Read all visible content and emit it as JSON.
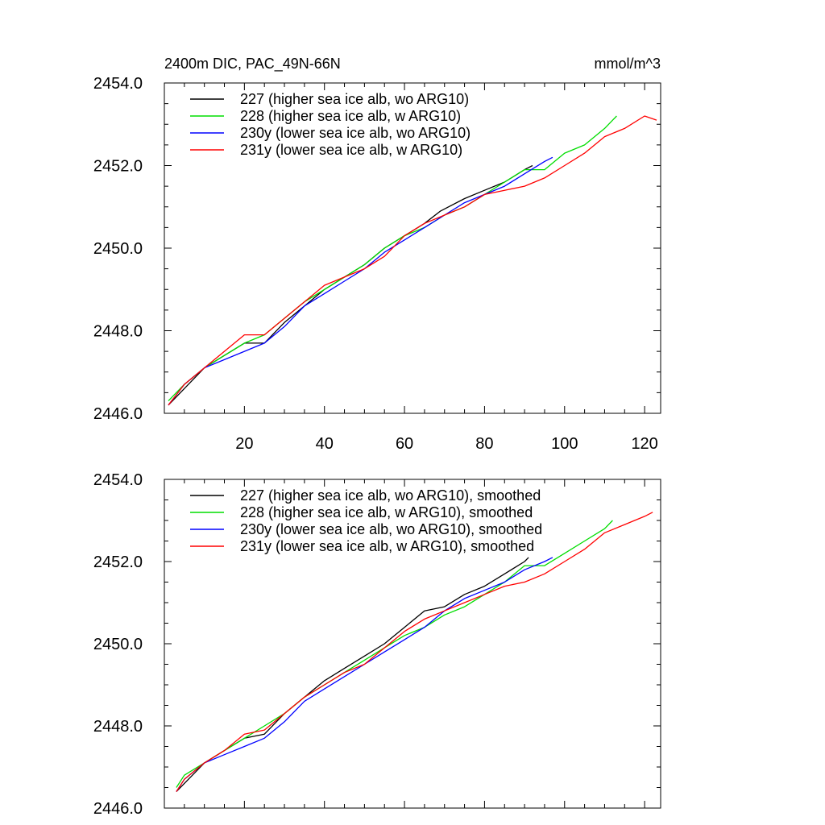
{
  "title_left": "2400m DIC, PAC_49N-66N",
  "title_right": "mmol/m^3",
  "chart_data": [
    {
      "type": "line",
      "xlim": [
        0,
        124
      ],
      "ylim": [
        2446.0,
        2454.0
      ],
      "x_ticks": [
        20,
        40,
        60,
        80,
        100,
        120
      ],
      "x_tick_labels": [
        "20",
        "40",
        "60",
        "80",
        "100",
        "120"
      ],
      "show_x_tick_labels": true,
      "y_ticks": [
        2446.0,
        2448.0,
        2450.0,
        2452.0,
        2454.0
      ],
      "y_tick_labels": [
        "2446.0",
        "2448.0",
        "2450.0",
        "2452.0",
        "2454.0"
      ],
      "grid": false,
      "legend_position": "top-left",
      "series": [
        {
          "name": "227 (higher sea ice alb, wo ARG10)",
          "color": "#000000",
          "x": [
            1,
            5,
            10,
            15,
            20,
            25,
            30,
            35,
            40,
            45,
            50,
            55,
            60,
            65,
            69,
            75,
            80,
            85,
            90,
            92
          ],
          "y": [
            2446.2,
            2446.6,
            2447.1,
            2447.4,
            2447.7,
            2447.7,
            2448.2,
            2448.6,
            2449.0,
            2449.3,
            2449.6,
            2450.0,
            2450.3,
            2450.6,
            2450.9,
            2451.2,
            2451.4,
            2451.6,
            2451.9,
            2452.0
          ]
        },
        {
          "name": "228 (higher sea ice alb, w ARG10)",
          "color": "#00dd00",
          "x": [
            1,
            5,
            10,
            15,
            20,
            25,
            30,
            35,
            40,
            45,
            50,
            55,
            60,
            65,
            70,
            75,
            80,
            85,
            90,
            95,
            100,
            105,
            110,
            113
          ],
          "y": [
            2446.3,
            2446.7,
            2447.1,
            2447.4,
            2447.7,
            2447.9,
            2448.3,
            2448.7,
            2449.0,
            2449.3,
            2449.6,
            2450.0,
            2450.3,
            2450.5,
            2450.8,
            2451.0,
            2451.3,
            2451.6,
            2451.9,
            2451.9,
            2452.3,
            2452.5,
            2452.9,
            2453.2
          ]
        },
        {
          "name": "230y (lower sea ice alb, wo ARG10)",
          "color": "#0000ff",
          "x": [
            1,
            5,
            10,
            15,
            20,
            25,
            30,
            35,
            40,
            45,
            50,
            55,
            60,
            65,
            70,
            75,
            80,
            85,
            90,
            95,
            97
          ],
          "y": [
            2446.2,
            2446.7,
            2447.1,
            2447.3,
            2447.5,
            2447.7,
            2448.1,
            2448.6,
            2448.9,
            2449.2,
            2449.5,
            2449.9,
            2450.2,
            2450.5,
            2450.8,
            2451.1,
            2451.3,
            2451.5,
            2451.8,
            2452.1,
            2452.2
          ]
        },
        {
          "name": "231y (lower sea ice alb, w ARG10)",
          "color": "#ff0000",
          "x": [
            1,
            5,
            10,
            15,
            20,
            25,
            30,
            35,
            40,
            45,
            50,
            55,
            60,
            65,
            70,
            75,
            80,
            85,
            90,
            95,
            100,
            105,
            110,
            115,
            120,
            123
          ],
          "y": [
            2446.2,
            2446.7,
            2447.1,
            2447.5,
            2447.9,
            2447.9,
            2448.3,
            2448.7,
            2449.1,
            2449.3,
            2449.5,
            2449.8,
            2450.3,
            2450.6,
            2450.8,
            2451.0,
            2451.3,
            2451.4,
            2451.5,
            2451.7,
            2452.0,
            2452.3,
            2452.7,
            2452.9,
            2453.2,
            2453.1
          ]
        }
      ]
    },
    {
      "type": "line",
      "xlim": [
        0,
        124
      ],
      "ylim": [
        2446.0,
        2454.0
      ],
      "x_ticks": [
        20,
        40,
        60,
        80,
        100,
        120
      ],
      "x_tick_labels": [],
      "show_x_tick_labels": false,
      "y_ticks": [
        2446.0,
        2448.0,
        2450.0,
        2452.0,
        2454.0
      ],
      "y_tick_labels": [
        "2446.0",
        "2448.0",
        "2450.0",
        "2452.0",
        "2454.0"
      ],
      "grid": false,
      "legend_position": "top-left",
      "series": [
        {
          "name": "227 (higher sea ice alb, wo ARG10), smoothed",
          "color": "#000000",
          "x": [
            3,
            5,
            10,
            15,
            20,
            25,
            30,
            35,
            40,
            45,
            50,
            55,
            60,
            65,
            70,
            75,
            80,
            85,
            90,
            91
          ],
          "y": [
            2446.4,
            2446.6,
            2447.1,
            2447.4,
            2447.7,
            2447.8,
            2448.3,
            2448.7,
            2449.1,
            2449.4,
            2449.7,
            2450.0,
            2450.4,
            2450.8,
            2450.9,
            2451.2,
            2451.4,
            2451.7,
            2452.0,
            2452.1
          ]
        },
        {
          "name": "228 (higher sea ice alb, w ARG10), smoothed",
          "color": "#00dd00",
          "x": [
            3,
            5,
            10,
            15,
            20,
            25,
            30,
            35,
            40,
            45,
            50,
            55,
            60,
            65,
            70,
            75,
            80,
            85,
            90,
            95,
            100,
            105,
            110,
            112
          ],
          "y": [
            2446.5,
            2446.8,
            2447.1,
            2447.4,
            2447.7,
            2448.0,
            2448.3,
            2448.7,
            2449.0,
            2449.3,
            2449.6,
            2449.9,
            2450.2,
            2450.4,
            2450.7,
            2450.9,
            2451.2,
            2451.5,
            2451.9,
            2451.9,
            2452.2,
            2452.5,
            2452.8,
            2453.0
          ]
        },
        {
          "name": "230y (lower sea ice alb, wo ARG10), smoothed",
          "color": "#0000ff",
          "x": [
            3,
            5,
            10,
            15,
            20,
            25,
            30,
            35,
            40,
            45,
            50,
            55,
            60,
            65,
            70,
            75,
            80,
            85,
            90,
            95,
            97
          ],
          "y": [
            2446.4,
            2446.7,
            2447.1,
            2447.3,
            2447.5,
            2447.7,
            2448.1,
            2448.6,
            2448.9,
            2449.2,
            2449.5,
            2449.8,
            2450.1,
            2450.4,
            2450.8,
            2451.1,
            2451.3,
            2451.5,
            2451.8,
            2452.0,
            2452.1
          ]
        },
        {
          "name": "231y (lower sea ice alb, w ARG10), smoothed",
          "color": "#ff0000",
          "x": [
            3,
            5,
            10,
            15,
            20,
            25,
            30,
            35,
            40,
            45,
            50,
            55,
            60,
            65,
            70,
            75,
            80,
            85,
            90,
            95,
            100,
            105,
            110,
            115,
            120,
            122
          ],
          "y": [
            2446.4,
            2446.7,
            2447.1,
            2447.4,
            2447.8,
            2447.9,
            2448.3,
            2448.7,
            2449.0,
            2449.3,
            2449.5,
            2449.9,
            2450.3,
            2450.6,
            2450.8,
            2451.0,
            2451.2,
            2451.4,
            2451.5,
            2451.7,
            2452.0,
            2452.3,
            2452.7,
            2452.9,
            2453.1,
            2453.2
          ]
        }
      ]
    }
  ]
}
